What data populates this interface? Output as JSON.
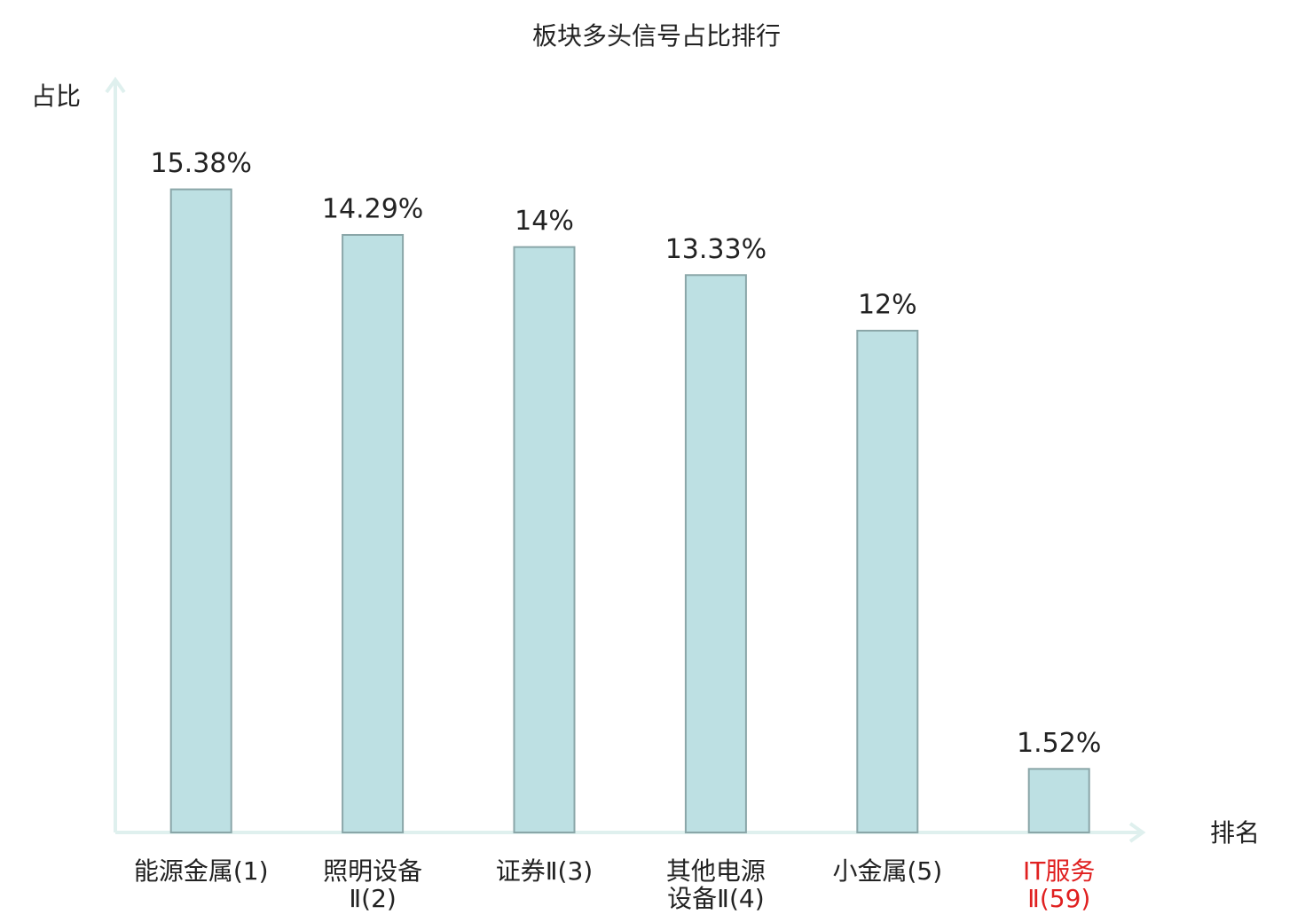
{
  "chart_data": {
    "type": "bar",
    "title": "板块多头信号占比排行",
    "y_label": "占比",
    "x_label": "排名",
    "categories": [
      [
        "能源金属(1)"
      ],
      [
        "照明设备",
        "Ⅱ(2)"
      ],
      [
        "证券Ⅱ(3)"
      ],
      [
        "其他电源",
        "设备Ⅱ(4)"
      ],
      [
        "小金属(5)"
      ],
      [
        "IT服务",
        "Ⅱ(59)"
      ]
    ],
    "category_colors": [
      "#222222",
      "#222222",
      "#222222",
      "#222222",
      "#222222",
      "#e02020"
    ],
    "values": [
      15.38,
      14.29,
      14,
      13.33,
      12,
      1.52
    ],
    "value_labels": [
      "15.38%",
      "14.29%",
      "14%",
      "13.33%",
      "12%",
      "1.52%"
    ],
    "color": "#bde0e3",
    "edge_color": "#8aa6a8",
    "ylim": [
      0,
      18
    ]
  }
}
